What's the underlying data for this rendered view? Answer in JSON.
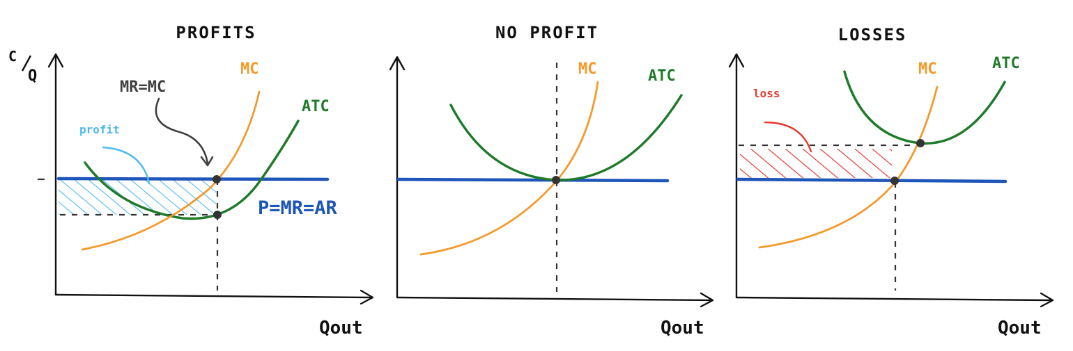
{
  "panels": [
    {
      "title": "PROFITS"
    },
    {
      "title": "NO PROFIT"
    },
    {
      "title": "LOSSES"
    }
  ],
  "axes": {
    "y_label_top": "C",
    "y_label_bottom": "Q",
    "x_label": "Qout"
  },
  "labels": {
    "mc": "MC",
    "atc": "ATC",
    "price_line": "P=MR=AR",
    "mr_mc": "MR=MC",
    "profit": "profit",
    "loss": "loss"
  },
  "colors": {
    "mc": "#f39a2b",
    "atc": "#1f7a2a",
    "price": "#1d55b8",
    "profit": "#4fb8f0",
    "loss": "#e23b2e",
    "annotation": "#404040"
  }
}
